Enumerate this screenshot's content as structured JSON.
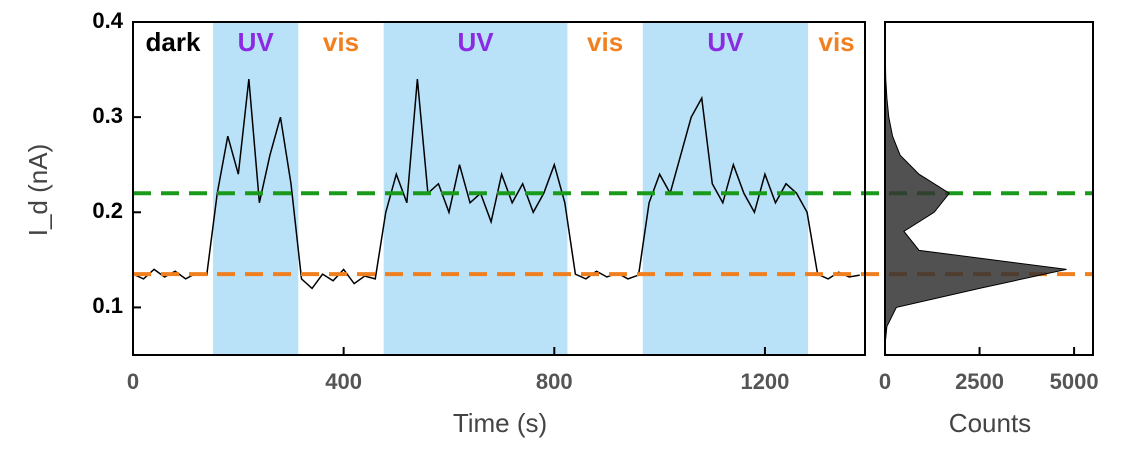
{
  "chart_data": [
    {
      "type": "line",
      "y_label": "I_d (nA)",
      "x_label": "Time (s)",
      "color": "#000000",
      "xlim": [
        0,
        1390
      ],
      "xticks": [
        0,
        400,
        800,
        1200
      ],
      "ylim": [
        0.05,
        0.4
      ],
      "yticks": [
        0.1,
        0.2,
        0.3,
        0.4
      ],
      "x": [
        0,
        20,
        40,
        60,
        80,
        100,
        120,
        140,
        160,
        180,
        200,
        220,
        240,
        260,
        280,
        300,
        320,
        340,
        360,
        380,
        400,
        420,
        440,
        460,
        480,
        500,
        520,
        540,
        560,
        580,
        600,
        620,
        640,
        660,
        680,
        700,
        720,
        740,
        760,
        780,
        800,
        820,
        840,
        860,
        880,
        900,
        920,
        940,
        960,
        980,
        1000,
        1020,
        1040,
        1060,
        1080,
        1100,
        1120,
        1140,
        1160,
        1180,
        1200,
        1220,
        1240,
        1260,
        1280,
        1300,
        1320,
        1340,
        1360,
        1380
      ],
      "values": [
        0.135,
        0.13,
        0.14,
        0.132,
        0.138,
        0.13,
        0.136,
        0.134,
        0.22,
        0.28,
        0.24,
        0.34,
        0.21,
        0.26,
        0.3,
        0.23,
        0.13,
        0.12,
        0.135,
        0.128,
        0.14,
        0.125,
        0.133,
        0.13,
        0.2,
        0.24,
        0.21,
        0.34,
        0.22,
        0.23,
        0.2,
        0.25,
        0.21,
        0.22,
        0.19,
        0.24,
        0.21,
        0.23,
        0.2,
        0.22,
        0.25,
        0.21,
        0.135,
        0.13,
        0.138,
        0.132,
        0.136,
        0.13,
        0.134,
        0.21,
        0.24,
        0.22,
        0.26,
        0.3,
        0.32,
        0.23,
        0.21,
        0.25,
        0.22,
        0.2,
        0.24,
        0.21,
        0.23,
        0.22,
        0.2,
        0.135,
        0.13,
        0.137,
        0.132,
        0.134
      ],
      "regions": [
        {
          "label": "dark",
          "start": 0,
          "end": 152,
          "shaded": false,
          "color": "#000000"
        },
        {
          "label": "UV",
          "start": 152,
          "end": 314,
          "shaded": true,
          "color": "#8a2be2"
        },
        {
          "label": "vis",
          "start": 314,
          "end": 476,
          "shaded": false,
          "color": "#f08020"
        },
        {
          "label": "UV",
          "start": 476,
          "end": 825,
          "shaded": true,
          "color": "#8a2be2"
        },
        {
          "label": "vis",
          "start": 825,
          "end": 968,
          "shaded": false,
          "color": "#f08020"
        },
        {
          "label": "UV",
          "start": 968,
          "end": 1282,
          "shaded": true,
          "color": "#8a2be2"
        },
        {
          "label": "vis",
          "start": 1282,
          "end": 1390,
          "shaded": false,
          "color": "#f08020"
        }
      ],
      "shade_color": "#b9e2f8",
      "reference_lines": [
        {
          "value": 0.22,
          "color": "#1a9a1a"
        },
        {
          "value": 0.135,
          "color": "#f07f1f"
        }
      ]
    },
    {
      "type": "area",
      "x_label": "Counts",
      "color": "#333333",
      "xlim": [
        0,
        5500
      ],
      "xticks": [
        0,
        2500,
        5000
      ],
      "ylim": [
        0.05,
        0.4
      ],
      "y": [
        0.06,
        0.08,
        0.1,
        0.12,
        0.14,
        0.16,
        0.18,
        0.2,
        0.22,
        0.24,
        0.26,
        0.28,
        0.3,
        0.32,
        0.34,
        0.36,
        0.38,
        0.4
      ],
      "values": [
        0,
        50,
        300,
        2500,
        4800,
        900,
        500,
        1300,
        1700,
        900,
        400,
        200,
        100,
        50,
        20,
        10,
        0,
        0
      ]
    }
  ]
}
